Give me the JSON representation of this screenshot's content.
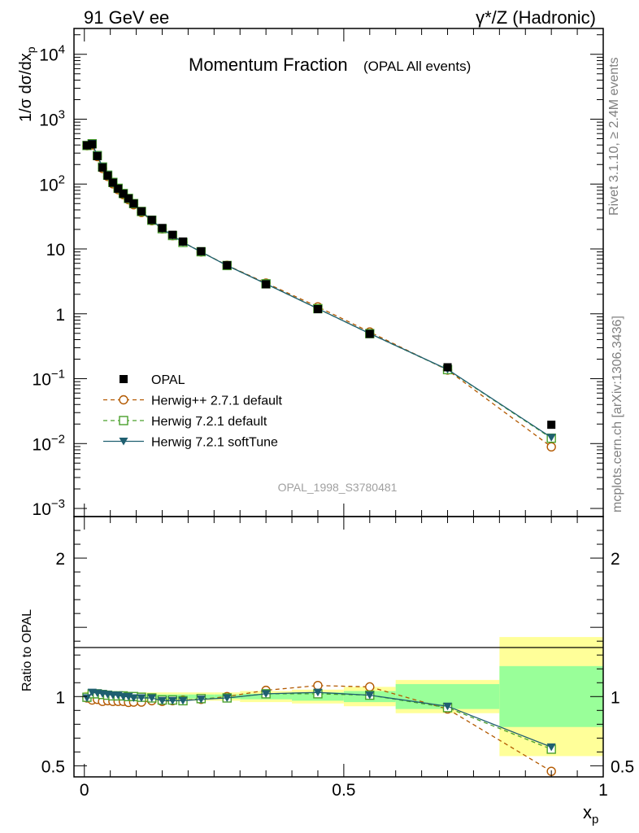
{
  "header": {
    "left": "91 GeV ee",
    "right": "γ*/Z (Hadronic)"
  },
  "side_text": {
    "rivet": "Rivet 3.1.10, ≥ 2.4M events",
    "mcplots": "mcplots.cern.ch [arXiv:1306.3436]"
  },
  "analysis_id": "OPAL_1998_S3780481",
  "colors": {
    "data": "#000000",
    "herwigpp": "#b35900",
    "herwig721": "#4aa02c",
    "softtune": "#1f5f70",
    "band_inner": "#99ff99",
    "band_outer": "#ffff99"
  },
  "chart_data": [
    {
      "type": "line",
      "panel": "main",
      "title": "Momentum Fraction",
      "subtitle": "(OPAL All events)",
      "ylabel": "1/σ dσ/dx_p",
      "y_scale": "log",
      "ylim": [
        0.00075,
        25000
      ],
      "xlim": [
        -0.02,
        1.0
      ],
      "y_ticks": [
        {
          "value": 10000,
          "base": "10",
          "exp": "4"
        },
        {
          "value": 1000,
          "base": "10",
          "exp": "3"
        },
        {
          "value": 100,
          "base": "10",
          "exp": "2"
        },
        {
          "value": 10,
          "base": "10",
          "exp": ""
        },
        {
          "value": 1,
          "base": "1",
          "exp": ""
        },
        {
          "value": 0.1,
          "base": "10",
          "exp": "−1"
        },
        {
          "value": 0.01,
          "base": "10",
          "exp": "−2"
        },
        {
          "value": 0.001,
          "base": "10",
          "exp": "−3"
        }
      ],
      "x": [
        0.005,
        0.015,
        0.025,
        0.035,
        0.045,
        0.055,
        0.065,
        0.075,
        0.085,
        0.095,
        0.11,
        0.13,
        0.15,
        0.17,
        0.19,
        0.225,
        0.275,
        0.35,
        0.45,
        0.55,
        0.7,
        0.9
      ],
      "data_series": {
        "name": "OPAL",
        "values": [
          395,
          410,
          270,
          180,
          135,
          105,
          85,
          71,
          60,
          50,
          38,
          28,
          21,
          16.5,
          13,
          9.2,
          5.6,
          2.85,
          1.18,
          0.49,
          0.15,
          0.0195
        ]
      },
      "series": [
        {
          "name": "Herwig++ 2.7.1 default",
          "style": "dashed",
          "marker": "open-circle",
          "values": [
            390,
            400,
            265,
            174,
            131,
            101,
            82,
            68.5,
            57.5,
            48,
            36.5,
            27.2,
            20.3,
            16.0,
            12.7,
            9.0,
            5.6,
            2.98,
            1.28,
            0.525,
            0.136,
            0.0089
          ]
        },
        {
          "name": "Herwig 7.2.1 default",
          "style": "dashed",
          "marker": "open-square",
          "values": [
            393,
            418,
            275,
            183,
            137,
            106,
            86,
            71.5,
            60,
            50,
            37.8,
            27.7,
            20.5,
            16.1,
            12.6,
            9.05,
            5.55,
            2.9,
            1.2,
            0.495,
            0.138,
            0.0121
          ]
        },
        {
          "name": "Herwig 7.2.1 softTune",
          "style": "solid",
          "marker": "filled-triangle-down",
          "values": [
            392,
            420,
            276,
            184,
            138,
            106,
            86,
            71,
            60,
            50,
            37.6,
            27.7,
            20.4,
            16.0,
            12.6,
            9.0,
            5.55,
            2.9,
            1.2,
            0.497,
            0.139,
            0.0124
          ]
        }
      ],
      "legend": {
        "placement": "bottom-left"
      }
    },
    {
      "type": "line",
      "panel": "ratio",
      "ylabel": "Ratio to OPAL",
      "xlabel": "x_p",
      "ylim": [
        0.42,
        2.3
      ],
      "xlim": [
        -0.02,
        1.0
      ],
      "y_ticks": [
        {
          "value": 2,
          "label": "2"
        },
        {
          "value": 1,
          "label": "1"
        },
        {
          "value": 0.5,
          "label": "0.5"
        }
      ],
      "x_ticks": [
        {
          "value": 0,
          "label": "0"
        },
        {
          "value": 0.5,
          "label": "0.5"
        },
        {
          "value": 1,
          "label": "1"
        }
      ],
      "bins": [
        [
          0,
          0.01
        ],
        [
          0.01,
          0.02
        ],
        [
          0.02,
          0.03
        ],
        [
          0.03,
          0.04
        ],
        [
          0.04,
          0.05
        ],
        [
          0.05,
          0.06
        ],
        [
          0.06,
          0.07
        ],
        [
          0.07,
          0.08
        ],
        [
          0.08,
          0.09
        ],
        [
          0.09,
          0.1
        ],
        [
          0.1,
          0.12
        ],
        [
          0.12,
          0.14
        ],
        [
          0.14,
          0.16
        ],
        [
          0.16,
          0.18
        ],
        [
          0.18,
          0.2
        ],
        [
          0.2,
          0.25
        ],
        [
          0.25,
          0.3
        ],
        [
          0.3,
          0.4
        ],
        [
          0.4,
          0.5
        ],
        [
          0.5,
          0.6
        ],
        [
          0.6,
          0.8
        ],
        [
          0.8,
          1.0
        ]
      ],
      "band_inner": [
        0.015,
        0.015,
        0.015,
        0.015,
        0.015,
        0.015,
        0.015,
        0.015,
        0.015,
        0.015,
        0.015,
        0.015,
        0.015,
        0.015,
        0.015,
        0.015,
        0.015,
        0.02,
        0.03,
        0.04,
        0.09,
        0.22
      ],
      "band_outer": [
        0.035,
        0.035,
        0.03,
        0.03,
        0.03,
        0.03,
        0.03,
        0.03,
        0.03,
        0.03,
        0.03,
        0.03,
        0.03,
        0.03,
        0.03,
        0.03,
        0.03,
        0.04,
        0.05,
        0.07,
        0.12,
        0.43
      ],
      "x": [
        0.005,
        0.015,
        0.025,
        0.035,
        0.045,
        0.055,
        0.065,
        0.075,
        0.085,
        0.095,
        0.11,
        0.13,
        0.15,
        0.17,
        0.19,
        0.225,
        0.275,
        0.35,
        0.45,
        0.55,
        0.7,
        0.9
      ],
      "series": [
        {
          "name": "Herwig++ 2.7.1 default",
          "style": "dashed",
          "marker": "open-circle",
          "values": [
            0.99,
            0.975,
            0.98,
            0.965,
            0.97,
            0.965,
            0.965,
            0.965,
            0.958,
            0.96,
            0.96,
            0.97,
            0.965,
            0.97,
            0.975,
            0.98,
            1.0,
            1.045,
            1.08,
            1.07,
            0.91,
            0.46
          ]
        },
        {
          "name": "Herwig 7.2.1 default",
          "style": "dashed",
          "marker": "open-square",
          "values": [
            0.995,
            1.02,
            1.02,
            1.015,
            1.01,
            1.005,
            1.005,
            1.005,
            1.0,
            1.0,
            0.995,
            0.99,
            0.975,
            0.975,
            0.97,
            0.985,
            0.99,
            1.02,
            1.02,
            1.01,
            0.92,
            0.62
          ]
        },
        {
          "name": "Herwig 7.2.1 softTune",
          "style": "solid",
          "marker": "filled-triangle-down",
          "values": [
            0.99,
            1.03,
            1.025,
            1.02,
            1.015,
            1.01,
            1.01,
            1.0,
            1.0,
            0.99,
            0.99,
            0.99,
            0.97,
            0.97,
            0.97,
            0.98,
            0.99,
            1.02,
            1.03,
            1.01,
            0.93,
            0.635
          ]
        }
      ]
    }
  ]
}
